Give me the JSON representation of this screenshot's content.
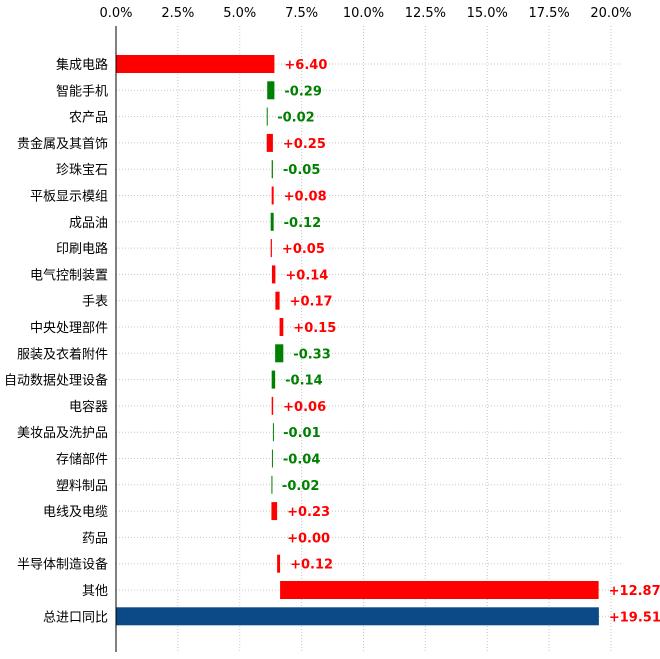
{
  "chart_data": {
    "type": "bar",
    "subtype": "waterfall-horizontal",
    "title": "",
    "xlabel": "",
    "ylabel": "",
    "xlim": [
      0,
      20
    ],
    "x_ticks": [
      "0.0%",
      "2.5%",
      "5.0%",
      "7.5%",
      "10.0%",
      "12.5%",
      "15.0%",
      "17.5%",
      "20.0%"
    ],
    "x_axis_position": "top",
    "grid": true,
    "legend": "none",
    "colors": {
      "increase": "#ff0000",
      "decrease": "#008000",
      "total": "#0b4a86"
    },
    "bars": [
      {
        "category": "集成电路",
        "value": 6.4,
        "label": "+6.40",
        "start": 0.0,
        "end": 6.4,
        "kind": "increase"
      },
      {
        "category": "智能手机",
        "value": -0.29,
        "label": "-0.29",
        "start": 6.4,
        "end": 6.11,
        "kind": "decrease"
      },
      {
        "category": "农产品",
        "value": -0.02,
        "label": "-0.02",
        "start": 6.11,
        "end": 6.09,
        "kind": "decrease"
      },
      {
        "category": "贵金属及其首饰",
        "value": 0.25,
        "label": "+0.25",
        "start": 6.09,
        "end": 6.34,
        "kind": "increase"
      },
      {
        "category": "珍珠宝石",
        "value": -0.05,
        "label": "-0.05",
        "start": 6.34,
        "end": 6.29,
        "kind": "decrease"
      },
      {
        "category": "平板显示模组",
        "value": 0.08,
        "label": "+0.08",
        "start": 6.29,
        "end": 6.37,
        "kind": "increase"
      },
      {
        "category": "成品油",
        "value": -0.12,
        "label": "-0.12",
        "start": 6.37,
        "end": 6.25,
        "kind": "decrease"
      },
      {
        "category": "印刷电路",
        "value": 0.05,
        "label": "+0.05",
        "start": 6.25,
        "end": 6.3,
        "kind": "increase"
      },
      {
        "category": "电气控制装置",
        "value": 0.14,
        "label": "+0.14",
        "start": 6.3,
        "end": 6.44,
        "kind": "increase"
      },
      {
        "category": "手表",
        "value": 0.17,
        "label": "+0.17",
        "start": 6.44,
        "end": 6.61,
        "kind": "increase"
      },
      {
        "category": "中央处理部件",
        "value": 0.15,
        "label": "+0.15",
        "start": 6.61,
        "end": 6.76,
        "kind": "increase"
      },
      {
        "category": "服装及衣着附件",
        "value": -0.33,
        "label": "-0.33",
        "start": 6.76,
        "end": 6.43,
        "kind": "decrease"
      },
      {
        "category": "自动数据处理设备",
        "value": -0.14,
        "label": "-0.14",
        "start": 6.43,
        "end": 6.29,
        "kind": "decrease"
      },
      {
        "category": "电容器",
        "value": 0.06,
        "label": "+0.06",
        "start": 6.29,
        "end": 6.35,
        "kind": "increase"
      },
      {
        "category": "美妆品及洗护品",
        "value": -0.01,
        "label": "-0.01",
        "start": 6.35,
        "end": 6.34,
        "kind": "decrease"
      },
      {
        "category": "存储部件",
        "value": -0.04,
        "label": "-0.04",
        "start": 6.34,
        "end": 6.3,
        "kind": "decrease"
      },
      {
        "category": "塑料制品",
        "value": -0.02,
        "label": "-0.02",
        "start": 6.3,
        "end": 6.28,
        "kind": "decrease"
      },
      {
        "category": "电线及电缆",
        "value": 0.23,
        "label": "+0.23",
        "start": 6.28,
        "end": 6.51,
        "kind": "increase"
      },
      {
        "category": "药品",
        "value": 0.0,
        "label": "+0.00",
        "start": 6.51,
        "end": 6.51,
        "kind": "increase"
      },
      {
        "category": "半导体制造设备",
        "value": 0.12,
        "label": "+0.12",
        "start": 6.51,
        "end": 6.63,
        "kind": "increase"
      },
      {
        "category": "其他",
        "value": 12.87,
        "label": "+12.87",
        "start": 6.63,
        "end": 19.5,
        "kind": "increase"
      },
      {
        "category": "总进口同比",
        "value": 19.51,
        "label": "+19.51",
        "start": 0.0,
        "end": 19.51,
        "kind": "total"
      }
    ]
  }
}
